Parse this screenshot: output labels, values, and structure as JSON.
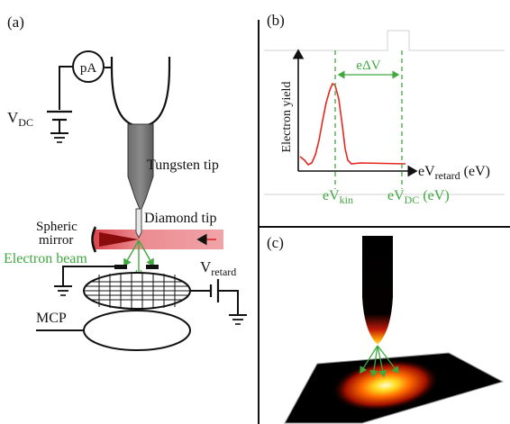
{
  "panel_a": {
    "label": "(a)",
    "ammeter": "pA",
    "vdc": "V",
    "vdc_sub": "DC",
    "tungsten_tip": "Tungsten tip",
    "diamond_tip": "Diamond tip",
    "mirror_1": "Spheric",
    "mirror_2": "mirror",
    "electron_beam": "Electron beam",
    "vretard": "V",
    "vretard_sub": "retard",
    "mcp": "MCP"
  },
  "panel_b": {
    "label": "(b)",
    "ylabel": "Electron yield",
    "xlabel": "eV",
    "xlabel_sub": "retard",
    "xlabel_unit": " (eV)",
    "delta": "eΔV",
    "evkin": "eV",
    "evkin_sub": "kin",
    "evdc": "eV",
    "evdc_sub": "DC",
    "evdc_unit": " (eV)"
  },
  "panel_c": {
    "label": "(c)"
  },
  "colors": {
    "green": "#3fa83f",
    "red": "#e8261e",
    "laser": "#e87a80"
  }
}
